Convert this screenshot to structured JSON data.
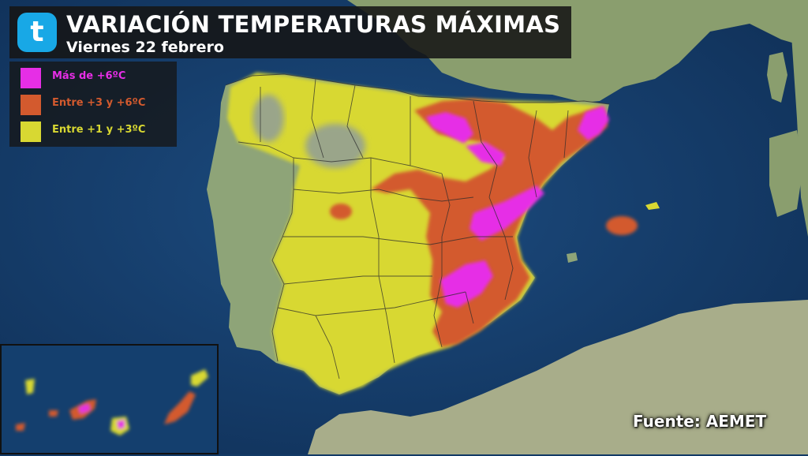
{
  "header": {
    "title": "VARIACIÓN TEMPERATURAS MÁXIMAS",
    "subtitle": "Viernes 22 febrero",
    "logo_letter": "t"
  },
  "legend": {
    "items": [
      {
        "label": "Más de +6ºC",
        "color": "#e62ee6"
      },
      {
        "label": "Entre +3 y +6ºC",
        "color": "#d35a2e"
      },
      {
        "label": "Entre +1 y +3ºC",
        "color": "#d8d832"
      }
    ]
  },
  "source": "Fuente: AEMET",
  "colors": {
    "sea": "#123a66",
    "land": "#8ea478",
    "over6": "#e62ee6",
    "from3to6": "#d35a2e",
    "from1to3": "#d8d832",
    "brand": "#18a8e6"
  }
}
